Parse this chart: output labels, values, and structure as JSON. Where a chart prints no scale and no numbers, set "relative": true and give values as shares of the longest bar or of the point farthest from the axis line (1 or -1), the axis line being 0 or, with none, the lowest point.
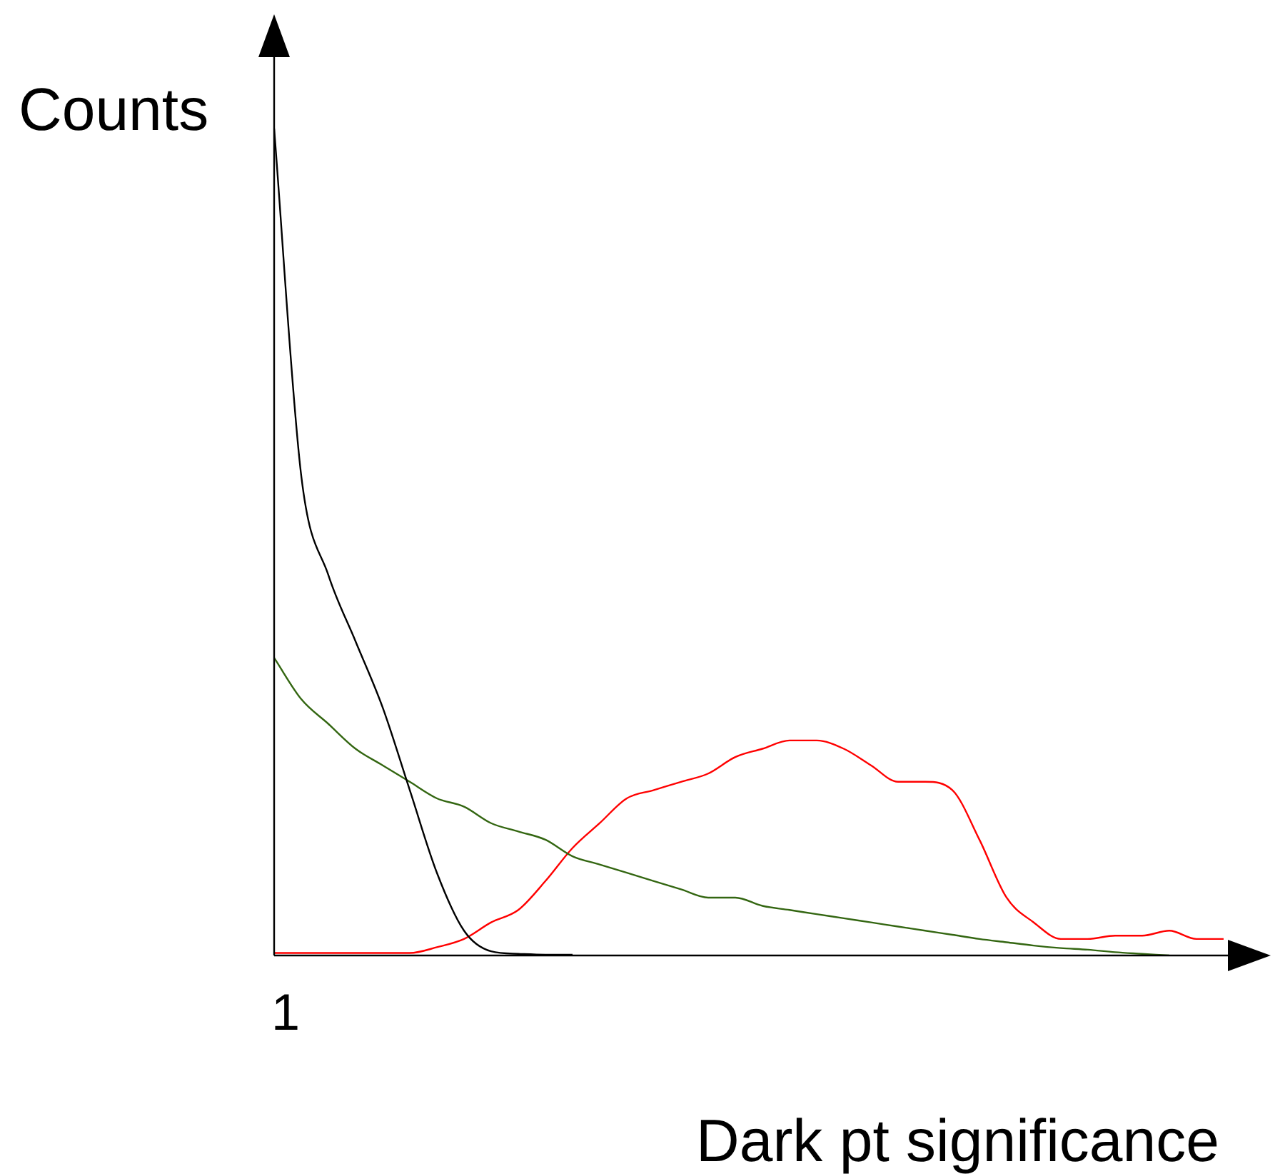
{
  "chart_data": {
    "type": "line",
    "xlabel": "Dark pt significance",
    "ylabel": "Counts",
    "relative": true,
    "annotations": [
      "1"
    ],
    "categories": [
      null,
      null,
      null,
      null,
      null,
      null,
      null,
      null,
      null,
      null,
      null,
      null,
      null,
      null,
      null,
      null,
      null,
      null,
      null,
      null,
      null,
      null,
      null,
      null,
      null,
      null,
      null,
      null,
      null,
      null,
      null,
      null,
      null,
      null,
      null,
      null
    ],
    "series": [
      {
        "color": "#000000",
        "values": [
          1.0,
          0.58,
          0.46,
          0.38,
          0.3,
          0.2,
          0.1,
          0.03,
          0.005,
          0.002,
          0.001,
          0.001,
          null,
          null,
          null,
          null,
          null,
          null,
          null,
          null,
          null,
          null,
          null,
          null,
          null,
          null,
          null,
          null,
          null,
          null,
          null,
          null,
          null,
          null,
          null,
          null
        ]
      },
      {
        "color": "#336611",
        "values": [
          0.36,
          0.31,
          0.28,
          0.25,
          0.23,
          0.21,
          0.19,
          0.18,
          0.16,
          0.15,
          0.14,
          0.12,
          0.11,
          0.1,
          0.09,
          0.08,
          0.07,
          0.07,
          0.06,
          0.055,
          0.05,
          0.045,
          0.04,
          0.035,
          0.03,
          0.025,
          0.02,
          0.016,
          0.012,
          0.009,
          0.007,
          0.004,
          0.002,
          0.0,
          null,
          null
        ]
      },
      {
        "color": "#ff0000",
        "values": [
          0.003,
          0.003,
          0.003,
          0.003,
          0.003,
          0.003,
          0.01,
          0.02,
          0.04,
          0.055,
          0.09,
          0.13,
          0.16,
          0.19,
          0.2,
          0.21,
          0.22,
          0.24,
          0.25,
          0.26,
          0.26,
          0.25,
          0.23,
          0.21,
          0.21,
          0.2,
          0.14,
          0.07,
          0.04,
          0.02,
          0.02,
          0.024,
          0.024,
          0.03,
          0.02,
          0.02
        ]
      }
    ]
  }
}
